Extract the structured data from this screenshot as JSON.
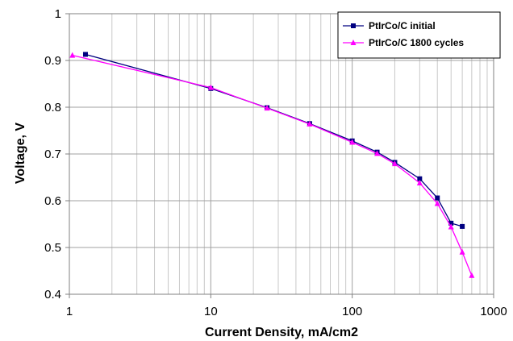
{
  "chart_data": {
    "type": "line",
    "xscale": "log",
    "xlim": [
      1,
      1000
    ],
    "ylim": [
      0.4,
      1.0
    ],
    "xlabel": "Current Density, mA/cm2",
    "ylabel": "Voltage, V",
    "xticks": [
      "1",
      "10",
      "100",
      "1000"
    ],
    "yticks": [
      "0.4",
      "0.5",
      "0.6",
      "0.7",
      "0.8",
      "0.9",
      "1"
    ],
    "grid": true,
    "legend_position": "top-right",
    "series": [
      {
        "name": "PtIrCo/C initial",
        "color": "#000080",
        "marker": "square",
        "x": [
          1.3,
          10,
          25,
          50,
          100,
          150,
          200,
          300,
          400,
          500,
          600
        ],
        "y": [
          0.913,
          0.84,
          0.799,
          0.765,
          0.728,
          0.704,
          0.682,
          0.647,
          0.606,
          0.552,
          0.545
        ]
      },
      {
        "name": "PtIrCo/C 1800 cycles",
        "color": "#ff00ff",
        "marker": "triangle",
        "x": [
          1.05,
          10,
          25,
          50,
          100,
          150,
          200,
          300,
          400,
          500,
          600,
          700
        ],
        "y": [
          0.911,
          0.842,
          0.798,
          0.764,
          0.725,
          0.701,
          0.679,
          0.638,
          0.594,
          0.544,
          0.49,
          0.44
        ]
      }
    ]
  }
}
